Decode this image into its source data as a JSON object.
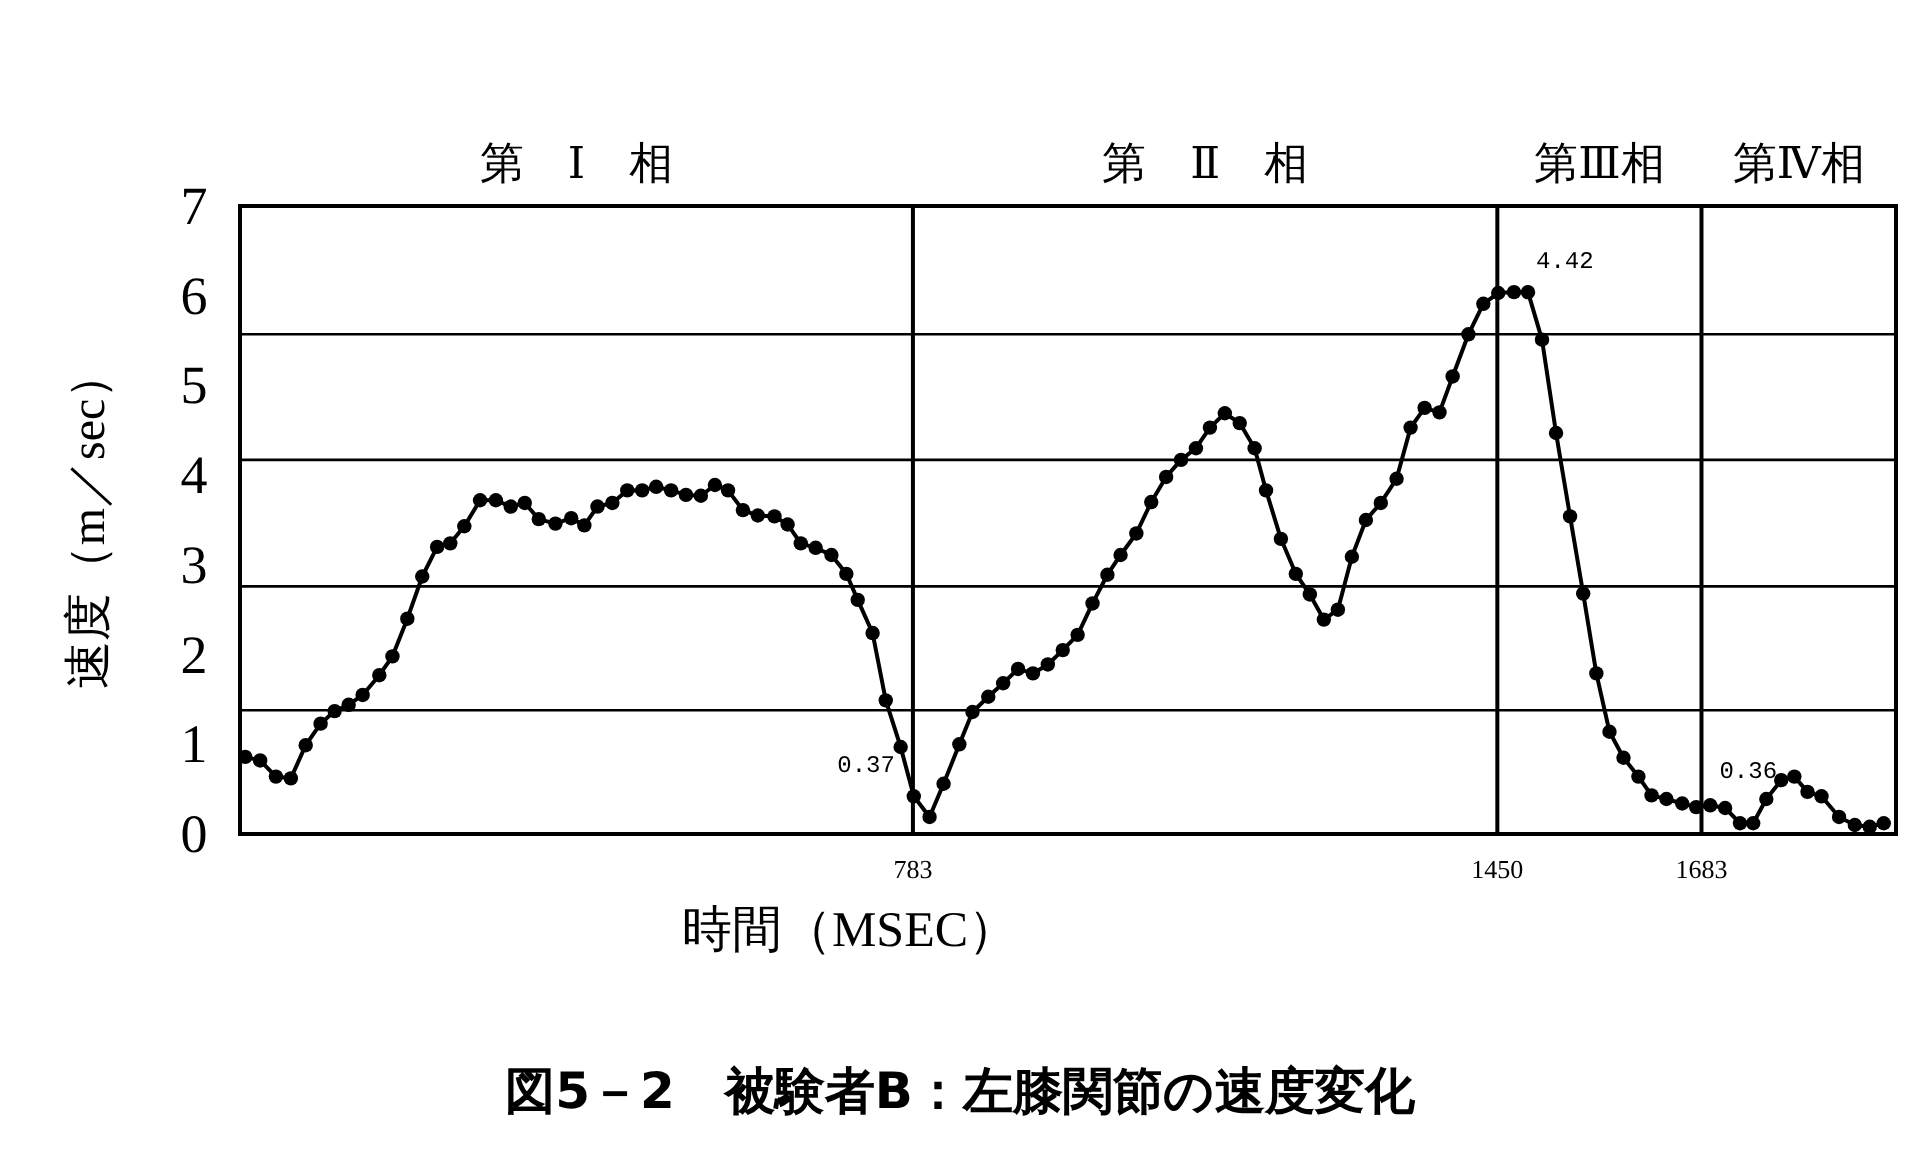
{
  "chart_data": {
    "type": "line",
    "title": "図5－2　被験者B：左膝関節の速度変化",
    "xlabel": "時間（MSEC）",
    "ylabel": "速度（m／sec）",
    "xlim": [
      15,
      1905
    ],
    "xticks": [
      783,
      1450,
      1683
    ],
    "ylim": [
      0,
      7
    ],
    "yticks": [
      0,
      1,
      2,
      3,
      4,
      5,
      6,
      7
    ],
    "grid": "x",
    "marker": "circle",
    "line_style": "solid",
    "series": [
      {
        "color": "#000000",
        "x": [
          21,
          38,
          56,
          73,
          90,
          107,
          123,
          139,
          155,
          174,
          189,
          206,
          223,
          240,
          255,
          271,
          289,
          307,
          324,
          340,
          356,
          375,
          393,
          408,
          423,
          440,
          457,
          474,
          490,
          507,
          524,
          541,
          557,
          572,
          589,
          606,
          625,
          640,
          655,
          672,
          690,
          707,
          720,
          737,
          752,
          769,
          784,
          802,
          818,
          836,
          851,
          869,
          886,
          903,
          920,
          937,
          954,
          971,
          988,
          1005,
          1020,
          1038,
          1055,
          1072,
          1089,
          1106,
          1122,
          1139,
          1156,
          1173,
          1186,
          1203,
          1220,
          1236,
          1252,
          1268,
          1284,
          1300,
          1317,
          1335,
          1351,
          1367,
          1384,
          1399,
          1417,
          1434,
          1451,
          1469,
          1485,
          1501,
          1517,
          1533,
          1548,
          1563,
          1578,
          1594,
          1611,
          1626,
          1643,
          1661,
          1677,
          1693,
          1710,
          1727,
          1742,
          1757,
          1774,
          1789,
          1804,
          1820,
          1840,
          1858,
          1875,
          1891
        ],
        "values": [
          0.86,
          0.82,
          0.64,
          0.62,
          0.99,
          1.23,
          1.37,
          1.44,
          1.55,
          1.77,
          1.98,
          2.4,
          2.87,
          3.2,
          3.24,
          3.43,
          3.72,
          3.72,
          3.65,
          3.69,
          3.51,
          3.46,
          3.52,
          3.44,
          3.65,
          3.69,
          3.83,
          3.83,
          3.87,
          3.83,
          3.78,
          3.77,
          3.89,
          3.83,
          3.61,
          3.55,
          3.54,
          3.45,
          3.24,
          3.19,
          3.11,
          2.9,
          2.61,
          2.24,
          1.49,
          0.97,
          0.42,
          0.19,
          0.56,
          1.0,
          1.36,
          1.53,
          1.68,
          1.84,
          1.79,
          1.89,
          2.05,
          2.22,
          2.57,
          2.89,
          3.11,
          3.35,
          3.7,
          3.98,
          4.17,
          4.3,
          4.53,
          4.69,
          4.58,
          4.3,
          3.83,
          3.29,
          2.9,
          2.67,
          2.39,
          2.5,
          3.09,
          3.5,
          3.69,
          3.96,
          4.53,
          4.75,
          4.7,
          5.1,
          5.57,
          5.91,
          6.03,
          6.04,
          6.04,
          5.51,
          4.47,
          3.54,
          2.68,
          1.79,
          1.14,
          0.85,
          0.64,
          0.43,
          0.39,
          0.34,
          0.3,
          0.32,
          0.29,
          0.12,
          0.12,
          0.39,
          0.6,
          0.64,
          0.47,
          0.42,
          0.19,
          0.1,
          0.08,
          0.12
        ]
      }
    ],
    "ref_lines": [
      {
        "axis": "y",
        "value": 1.38,
        "color": "#000000"
      },
      {
        "axis": "y",
        "value": 2.76,
        "color": "#000000"
      },
      {
        "axis": "y",
        "value": 4.17,
        "color": "#000000"
      },
      {
        "axis": "y",
        "value": 5.57,
        "color": "#000000"
      }
    ],
    "annotations": [
      "第　Ⅰ　相",
      "第　Ⅱ　相",
      "第Ⅲ相",
      "第Ⅳ相",
      {
        "text": "4.42",
        "x": 1485,
        "y": 6.04
      },
      {
        "text": "0.37",
        "x": 783,
        "y": 0.42
      },
      {
        "text": "0.36",
        "x": 1683,
        "y": 0.31
      }
    ]
  }
}
